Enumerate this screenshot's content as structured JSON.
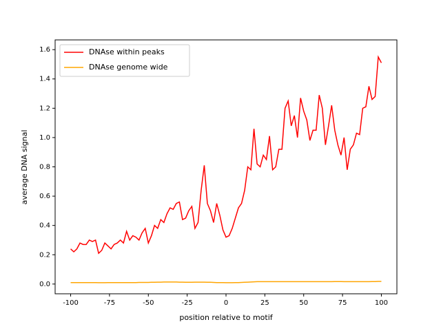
{
  "chart_data": {
    "type": "line",
    "ylabel": "average DNA signal",
    "xlabel": "position relative to motif",
    "x": [
      -100,
      -98,
      -96,
      -94,
      -92,
      -90,
      -88,
      -86,
      -84,
      -82,
      -80,
      -78,
      -76,
      -74,
      -72,
      -70,
      -68,
      -66,
      -64,
      -62,
      -60,
      -58,
      -56,
      -54,
      -52,
      -50,
      -48,
      -46,
      -44,
      -42,
      -40,
      -38,
      -36,
      -34,
      -32,
      -30,
      -28,
      -26,
      -24,
      -22,
      -20,
      -18,
      -16,
      -14,
      -12,
      -10,
      -8,
      -6,
      -4,
      -2,
      0,
      2,
      4,
      6,
      8,
      10,
      12,
      14,
      16,
      18,
      20,
      22,
      24,
      26,
      28,
      30,
      32,
      34,
      36,
      38,
      40,
      42,
      44,
      46,
      48,
      50,
      52,
      54,
      56,
      58,
      60,
      62,
      64,
      66,
      68,
      70,
      72,
      74,
      76,
      78,
      80,
      82,
      84,
      86,
      88,
      90,
      92,
      94,
      96,
      98,
      100
    ],
    "series": [
      {
        "name": "DNAse within peaks",
        "color": "#ff0000",
        "values": [
          0.24,
          0.22,
          0.24,
          0.28,
          0.27,
          0.27,
          0.3,
          0.29,
          0.3,
          0.21,
          0.23,
          0.28,
          0.26,
          0.24,
          0.27,
          0.28,
          0.3,
          0.28,
          0.36,
          0.3,
          0.33,
          0.32,
          0.3,
          0.35,
          0.38,
          0.28,
          0.33,
          0.4,
          0.38,
          0.44,
          0.42,
          0.48,
          0.52,
          0.51,
          0.55,
          0.56,
          0.44,
          0.45,
          0.5,
          0.53,
          0.38,
          0.42,
          0.64,
          0.81,
          0.55,
          0.5,
          0.42,
          0.55,
          0.47,
          0.37,
          0.32,
          0.33,
          0.38,
          0.45,
          0.52,
          0.55,
          0.64,
          0.8,
          0.78,
          1.06,
          0.82,
          0.8,
          0.88,
          0.85,
          1.01,
          0.78,
          0.8,
          0.92,
          0.92,
          1.2,
          1.25,
          1.08,
          1.15,
          1.0,
          1.27,
          1.18,
          1.12,
          0.98,
          1.05,
          1.05,
          1.29,
          1.2,
          0.95,
          1.08,
          1.22,
          1.05,
          0.95,
          0.88,
          1.0,
          0.78,
          0.92,
          0.95,
          1.03,
          1.02,
          1.2,
          1.21,
          1.35,
          1.26,
          1.28,
          1.55,
          1.51
        ]
      },
      {
        "name": "DNAse genome wide",
        "color": "#ffa500",
        "values": [
          0.01,
          0.01,
          0.01,
          0.01,
          0.01,
          0.01,
          0.01,
          0.01,
          0.01,
          0.009,
          0.009,
          0.009,
          0.01,
          0.01,
          0.01,
          0.01,
          0.01,
          0.01,
          0.01,
          0.01,
          0.01,
          0.01,
          0.011,
          0.011,
          0.011,
          0.011,
          0.012,
          0.012,
          0.013,
          0.013,
          0.014,
          0.014,
          0.014,
          0.014,
          0.014,
          0.013,
          0.013,
          0.012,
          0.012,
          0.012,
          0.013,
          0.013,
          0.013,
          0.013,
          0.012,
          0.012,
          0.011,
          0.01,
          0.01,
          0.01,
          0.009,
          0.009,
          0.009,
          0.01,
          0.01,
          0.011,
          0.012,
          0.013,
          0.014,
          0.015,
          0.016,
          0.016,
          0.016,
          0.016,
          0.016,
          0.016,
          0.016,
          0.016,
          0.016,
          0.016,
          0.016,
          0.016,
          0.016,
          0.016,
          0.016,
          0.016,
          0.016,
          0.016,
          0.016,
          0.016,
          0.016,
          0.016,
          0.016,
          0.016,
          0.016,
          0.017,
          0.017,
          0.017,
          0.016,
          0.016,
          0.016,
          0.016,
          0.016,
          0.016,
          0.016,
          0.016,
          0.016,
          0.017,
          0.017,
          0.018,
          0.018
        ]
      }
    ],
    "xlim": [
      -110,
      110
    ],
    "ylim": [
      -0.0665,
      1.6665
    ],
    "xticks": [
      -100,
      -75,
      -50,
      -25,
      0,
      25,
      50,
      75,
      100
    ],
    "yticks": [
      {
        "value": 0,
        "label": "0.0"
      },
      0.2,
      0.4,
      0.6,
      0.8,
      {
        "value": 1,
        "label": "1.0"
      },
      1.2,
      1.4,
      1.6
    ],
    "legend": "upper left"
  }
}
